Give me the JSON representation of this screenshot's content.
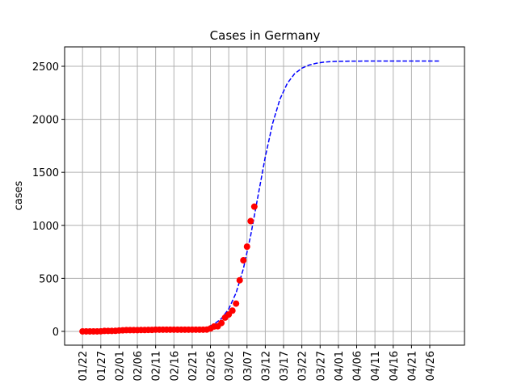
{
  "chart_data": {
    "type": "scatter",
    "title": "Cases in Germany",
    "y_label": "cases",
    "xlim": [
      -4.9,
      104.5
    ],
    "ylim": [
      -130,
      2683
    ],
    "grid": true,
    "xticks": [
      {
        "value": 0,
        "label": "01/22"
      },
      {
        "value": 5,
        "label": "01/27"
      },
      {
        "value": 10,
        "label": "02/01"
      },
      {
        "value": 15,
        "label": "02/06"
      },
      {
        "value": 20,
        "label": "02/11"
      },
      {
        "value": 25,
        "label": "02/16"
      },
      {
        "value": 30,
        "label": "02/21"
      },
      {
        "value": 35,
        "label": "02/26"
      },
      {
        "value": 40,
        "label": "03/02"
      },
      {
        "value": 45,
        "label": "03/07"
      },
      {
        "value": 50,
        "label": "03/12"
      },
      {
        "value": 55,
        "label": "03/17"
      },
      {
        "value": 60,
        "label": "03/22"
      },
      {
        "value": 65,
        "label": "03/27"
      },
      {
        "value": 70,
        "label": "04/01"
      },
      {
        "value": 75,
        "label": "04/06"
      },
      {
        "value": 80,
        "label": "04/11"
      },
      {
        "value": 85,
        "label": "04/16"
      },
      {
        "value": 90,
        "label": "04/21"
      },
      {
        "value": 95,
        "label": "04/26"
      }
    ],
    "yticks": [
      0,
      500,
      1000,
      1500,
      2000,
      2500
    ],
    "series": [
      {
        "type": "line",
        "color": "#0000ff",
        "x": [
          0,
          2,
          4,
          6,
          8,
          10,
          12,
          14,
          16,
          18,
          20,
          22,
          24,
          26,
          28,
          30,
          32,
          34,
          36,
          38,
          40,
          42,
          44,
          46,
          48,
          50,
          52,
          54,
          56,
          58,
          60,
          62,
          64,
          66,
          68,
          70,
          72,
          74,
          76,
          78,
          80,
          82,
          84,
          86,
          88,
          90,
          92,
          94,
          96,
          98
        ],
        "values": [
          0,
          0,
          0,
          0,
          0,
          0,
          0,
          0,
          0,
          0,
          1,
          1,
          2,
          3,
          6,
          11,
          21,
          38,
          68,
          121,
          212,
          362,
          590,
          904,
          1275,
          1646,
          1960,
          2189,
          2338,
          2429,
          2482,
          2512,
          2529,
          2539,
          2544,
          2547,
          2548,
          2549,
          2549,
          2550,
          2550,
          2550,
          2550,
          2550,
          2550,
          2550,
          2550,
          2550,
          2550,
          2550
        ]
      },
      {
        "type": "scatter",
        "color": "#ff0000",
        "x": [
          0,
          1,
          2,
          3,
          4,
          5,
          6,
          7,
          8,
          9,
          10,
          11,
          12,
          13,
          14,
          15,
          16,
          17,
          18,
          19,
          20,
          21,
          22,
          23,
          24,
          25,
          26,
          27,
          28,
          29,
          30,
          31,
          32,
          33,
          34,
          35,
          36,
          37,
          38,
          39,
          40,
          41,
          42,
          43,
          44,
          45,
          46,
          47
        ],
        "values": [
          0,
          0,
          0,
          0,
          0,
          1,
          4,
          4,
          4,
          5,
          8,
          10,
          12,
          12,
          12,
          12,
          13,
          13,
          14,
          14,
          16,
          16,
          16,
          16,
          16,
          16,
          16,
          16,
          16,
          16,
          16,
          16,
          16,
          16,
          17,
          27,
          46,
          48,
          79,
          130,
          159,
          196,
          262,
          482,
          670,
          799,
          1040,
          1176
        ]
      }
    ]
  }
}
